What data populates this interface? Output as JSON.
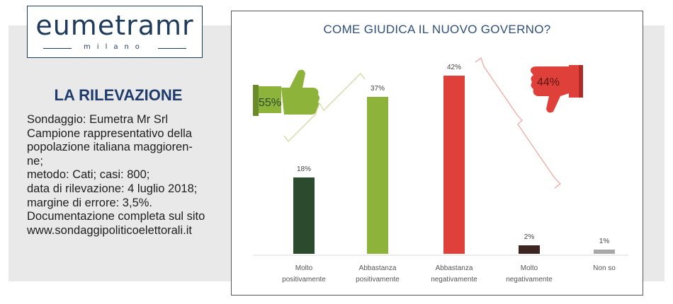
{
  "logo": {
    "word": "eumetramr",
    "sub": "milano"
  },
  "survey": {
    "title": "LA RILEVAZIONE",
    "lines": [
      "Sondaggio: Eumetra Mr Srl",
      "Campione rappresentativo della",
      "popolazione italiana maggioren-",
      "ne;",
      "metodo: Cati; casi: 800;",
      "data di rilevazione: 4 luglio 2018;",
      "margine di errore: 3,5%.",
      "Documentazione completa sul sito",
      "www.sondaggipoliticoelettorali.it"
    ]
  },
  "chart_data": {
    "type": "bar",
    "title": "COME GIUDICA IL NUOVO GOVERNO?",
    "categories": [
      [
        "Molto",
        "positivamente"
      ],
      [
        "Abbastanza",
        "positivamente"
      ],
      [
        "Abbastanza",
        "negativamente"
      ],
      [
        "Molto",
        "negativamente"
      ],
      [
        "Non so"
      ]
    ],
    "values": [
      18,
      37,
      42,
      2,
      1
    ],
    "value_labels": [
      "18%",
      "37%",
      "42%",
      "2%",
      "1%"
    ],
    "colors": [
      "#2c4a2e",
      "#8db33a",
      "#e0403a",
      "#3b2421",
      "#a8a8a8"
    ],
    "ylim": [
      0,
      45
    ],
    "annotations": [
      {
        "label": "55%",
        "kind": "thumbs-up",
        "color": "#8db33a"
      },
      {
        "label": "44%",
        "kind": "thumbs-down",
        "color": "#e0403a"
      }
    ]
  }
}
